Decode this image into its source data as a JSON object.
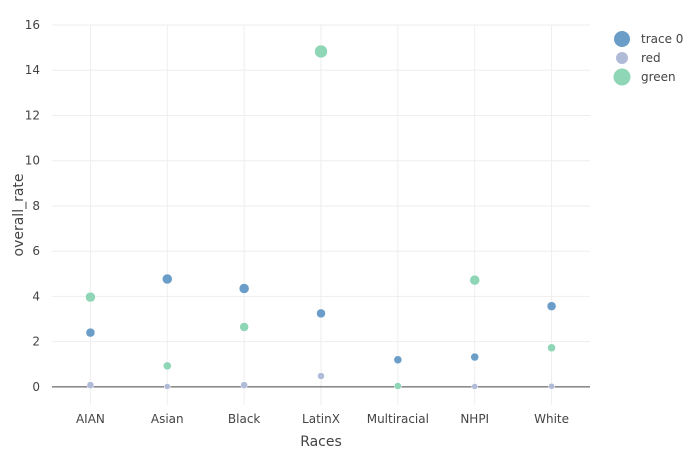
{
  "chart_data": {
    "type": "scatter",
    "xlabel": "Races",
    "ylabel": "overall_rate",
    "categories": [
      "AIAN",
      "Asian",
      "Black",
      "LatinX",
      "Multiracial",
      "NHPI",
      "White"
    ],
    "ylim": [
      -0.8,
      16
    ],
    "yticks": [
      0,
      2,
      4,
      6,
      8,
      10,
      12,
      14,
      16
    ],
    "grid": true,
    "legend_position": "top-right",
    "series": [
      {
        "name": "trace 0",
        "color": "#6a9dc8",
        "values": [
          2.4,
          4.77,
          4.35,
          3.25,
          1.2,
          1.32,
          3.57
        ],
        "sizes": [
          8,
          9,
          9,
          8,
          7,
          7,
          8
        ]
      },
      {
        "name": "red",
        "color": "#b0bbd8",
        "values": [
          0.08,
          0.02,
          0.08,
          0.48,
          0.01,
          0.02,
          0.03
        ],
        "sizes": [
          6,
          5,
          6,
          6,
          5,
          5,
          5
        ]
      },
      {
        "name": "green",
        "color": "#8fd6b6",
        "values": [
          3.97,
          0.93,
          2.65,
          14.83,
          0.04,
          4.72,
          1.73
        ],
        "sizes": [
          9,
          7,
          8,
          12,
          6,
          9,
          7
        ]
      }
    ]
  }
}
